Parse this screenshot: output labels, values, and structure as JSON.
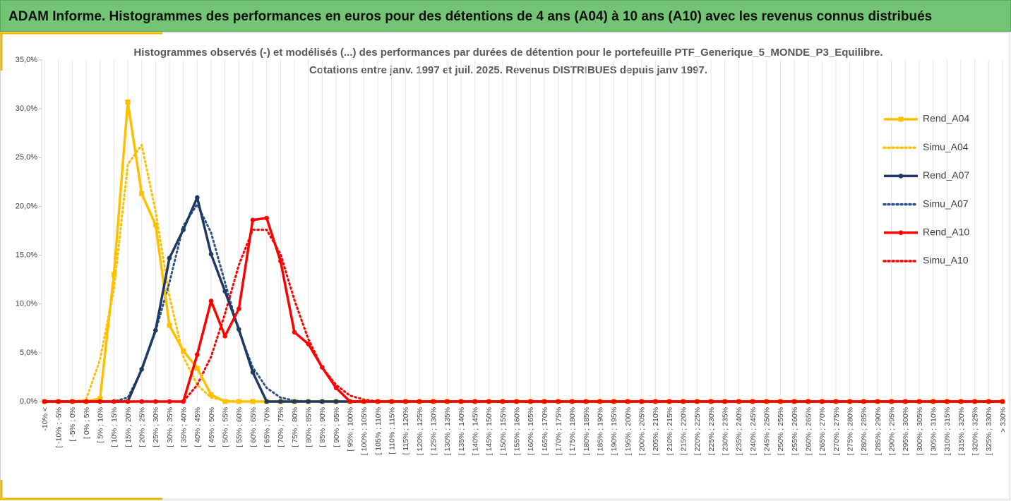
{
  "header": {
    "title": "ADAM Informe. Histogrammes des performances en euros pour des détentions de 4 ans (A04) à 10 ans (A10) avec les revenus connus distribués"
  },
  "chart_data": {
    "type": "line",
    "title": "Histogrammes observés (-) et modélisés (...) des performances par durées de détention pour  le portefeuille PTF_Generique_5_MONDE_P3_Equilibre.",
    "subtitle": "Cotations entre janv. 1997 et juil. 2025. Revenus DISTRIBUES depuis janv 1997.",
    "categories": [
      "-10% <",
      "[ -10% ; -5%",
      "[ -5% ; 0%",
      "[ 0% ; 5%",
      "[ 5% ; 10%",
      "[ 10% ; 15%",
      "[ 15% ; 20%",
      "[ 20% ; 25%",
      "[ 25% ; 30%",
      "[ 30% ; 35%",
      "[ 35% ; 40%",
      "[ 40% ; 45%",
      "[ 45% ; 50%",
      "[ 50% ; 55%",
      "[ 55% ; 60%",
      "[ 60% ; 65%",
      "[ 65% ; 70%",
      "[ 70% ; 75%",
      "[ 75% ; 80%",
      "[ 80% ; 85%",
      "[ 85% ; 90%",
      "[ 90% ; 95%",
      "[ 95% ; 100%",
      "[ 100% ; 105%",
      "[ 105% ; 110%",
      "[ 110% ; 115%",
      "[ 115% ; 120%",
      "[ 120% ; 125%",
      "[ 125% ; 130%",
      "[ 130% ; 135%",
      "[ 135% ; 140%",
      "[ 140% ; 145%",
      "[ 145% ; 150%",
      "[ 150% ; 155%",
      "[ 155% ; 160%",
      "[ 160% ; 165%",
      "[ 165% ; 170%",
      "[ 170% ; 175%",
      "[ 175% ; 180%",
      "[ 180% ; 185%",
      "[ 185% ; 190%",
      "[ 190% ; 195%",
      "[ 195% ; 200%",
      "[ 200% ; 205%",
      "[ 205% ; 210%",
      "[ 210% ; 215%",
      "[ 215% ; 220%",
      "[ 220% ; 225%",
      "[ 225% ; 230%",
      "[ 230% ; 235%",
      "[ 235% ; 240%",
      "[ 240% ; 245%",
      "[ 245% ; 250%",
      "[ 250% ; 255%",
      "[ 255% ; 260%",
      "[ 260% ; 265%",
      "[ 265% ; 270%",
      "[ 270% ; 275%",
      "[ 275% ; 280%",
      "[ 280% ; 285%",
      "[ 285% ; 290%",
      "[ 290% ; 295%",
      "[ 295% ; 300%",
      "[ 300% ; 305%",
      "[ 305% ; 310%",
      "[ 310% ; 315%",
      "[ 315% ; 320%",
      "[ 320% ; 325%",
      "[ 325% ; 330%",
      "> 330%"
    ],
    "series": [
      {
        "name": "Rend_A04",
        "color": "#ffc000",
        "dash": false,
        "marker": "square",
        "values": [
          0,
          0,
          0,
          0,
          0.3,
          13.0,
          30.7,
          21.3,
          18.1,
          7.8,
          5.2,
          3.4,
          0.7,
          0,
          0,
          0,
          0,
          0,
          0,
          0,
          0,
          0,
          0,
          0,
          0,
          0,
          0,
          0,
          0,
          0,
          0,
          0,
          0,
          0,
          0,
          0,
          0,
          0,
          0,
          0,
          0,
          0,
          0,
          0,
          0,
          0,
          0,
          0,
          0,
          0,
          0,
          0,
          0,
          0,
          0,
          0,
          0,
          0,
          0,
          0,
          0,
          0,
          0,
          0,
          0,
          0,
          0,
          0,
          0,
          0
        ]
      },
      {
        "name": "Simu_A04",
        "color": "#ffc000",
        "dash": true,
        "marker": null,
        "values": [
          0,
          0,
          0,
          0.2,
          4.3,
          11.5,
          24.3,
          26.3,
          19.5,
          10.8,
          4.6,
          1.7,
          0.4,
          0.1,
          0,
          0,
          0,
          0,
          0,
          0,
          0,
          0,
          0,
          0,
          0,
          0,
          0,
          0,
          0,
          0,
          0,
          0,
          0,
          0,
          0,
          0,
          0,
          0,
          0,
          0,
          0,
          0,
          0,
          0,
          0,
          0,
          0,
          0,
          0,
          0,
          0,
          0,
          0,
          0,
          0,
          0,
          0,
          0,
          0,
          0,
          0,
          0,
          0,
          0,
          0,
          0,
          0,
          0,
          0,
          0
        ]
      },
      {
        "name": "Rend_A07",
        "color": "#1f3864",
        "dash": false,
        "marker": "circle",
        "values": [
          0,
          0,
          0,
          0,
          0,
          0,
          0,
          3.3,
          7.3,
          14.7,
          17.6,
          20.9,
          15.1,
          11.3,
          7.4,
          3.0,
          0,
          0,
          0,
          0,
          0,
          0,
          0,
          0,
          0,
          0,
          0,
          0,
          0,
          0,
          0,
          0,
          0,
          0,
          0,
          0,
          0,
          0,
          0,
          0,
          0,
          0,
          0,
          0,
          0,
          0,
          0,
          0,
          0,
          0,
          0,
          0,
          0,
          0,
          0,
          0,
          0,
          0,
          0,
          0,
          0,
          0,
          0,
          0,
          0,
          0,
          0,
          0,
          0,
          0
        ]
      },
      {
        "name": "Simu_A07",
        "color": "#2e5586",
        "dash": true,
        "marker": null,
        "values": [
          0,
          0,
          0,
          0,
          0,
          0,
          0.4,
          3.2,
          7.2,
          12.2,
          18.0,
          20.2,
          17.3,
          12.2,
          7.2,
          3.5,
          1.4,
          0.4,
          0.1,
          0,
          0,
          0,
          0,
          0,
          0,
          0,
          0,
          0,
          0,
          0,
          0,
          0,
          0,
          0,
          0,
          0,
          0,
          0,
          0,
          0,
          0,
          0,
          0,
          0,
          0,
          0,
          0,
          0,
          0,
          0,
          0,
          0,
          0,
          0,
          0,
          0,
          0,
          0,
          0,
          0,
          0,
          0,
          0,
          0,
          0,
          0,
          0,
          0,
          0,
          0
        ]
      },
      {
        "name": "Rend_A10",
        "color": "#ff0000",
        "dash": false,
        "marker": "circle",
        "values": [
          0,
          0,
          0,
          0,
          0,
          0,
          0,
          0,
          0,
          0,
          0,
          4.8,
          10.3,
          6.7,
          9.5,
          18.6,
          18.8,
          14.4,
          7.1,
          5.9,
          3.5,
          1.4,
          0,
          0,
          0,
          0,
          0,
          0,
          0,
          0,
          0,
          0,
          0,
          0,
          0,
          0,
          0,
          0,
          0,
          0,
          0,
          0,
          0,
          0,
          0,
          0,
          0,
          0,
          0,
          0,
          0,
          0,
          0,
          0,
          0,
          0,
          0,
          0,
          0,
          0,
          0,
          0,
          0,
          0,
          0,
          0,
          0,
          0,
          0,
          0
        ]
      },
      {
        "name": "Simu_A10",
        "color": "#ff0000",
        "dash": true,
        "marker": null,
        "values": [
          0,
          0,
          0,
          0,
          0,
          0,
          0,
          0,
          0,
          0,
          0,
          1.7,
          4.6,
          9.0,
          14.0,
          17.6,
          17.6,
          15.1,
          10.4,
          6.4,
          3.5,
          1.7,
          0.6,
          0.2,
          0,
          0,
          0,
          0,
          0,
          0,
          0,
          0,
          0,
          0,
          0,
          0,
          0,
          0,
          0,
          0,
          0,
          0,
          0,
          0,
          0,
          0,
          0,
          0,
          0,
          0,
          0,
          0,
          0,
          0,
          0,
          0,
          0,
          0,
          0,
          0,
          0,
          0,
          0,
          0,
          0,
          0,
          0,
          0,
          0,
          0
        ]
      }
    ],
    "ylim": [
      0,
      35
    ],
    "yticks": [
      {
        "value": 0,
        "label": "0,0%"
      },
      {
        "value": 5,
        "label": "5,0%"
      },
      {
        "value": 10,
        "label": "10,0%"
      },
      {
        "value": 15,
        "label": "15,0%"
      },
      {
        "value": 20,
        "label": "20,0%"
      },
      {
        "value": 25,
        "label": "25,0%"
      },
      {
        "value": 30,
        "label": "30,0%"
      },
      {
        "value": 35,
        "label": "35,0%"
      }
    ],
    "grid": true,
    "legend": "right"
  }
}
